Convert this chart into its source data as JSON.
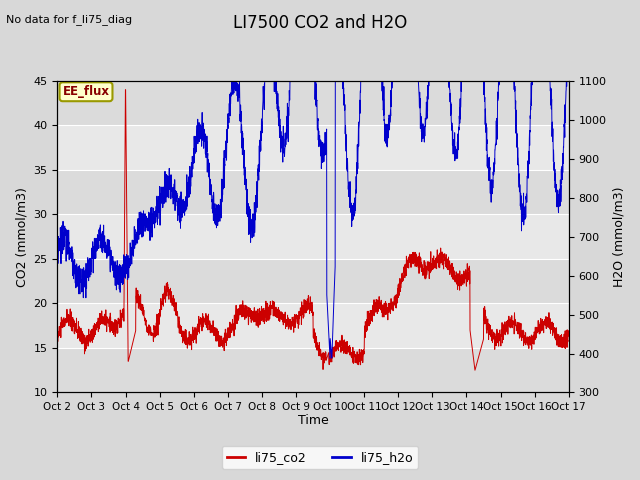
{
  "title": "LI7500 CO2 and H2O",
  "top_left_text": "No data for f_li75_diag",
  "xlabel": "Time",
  "ylabel_left": "CO2 (mmol/m3)",
  "ylabel_right": "H2O (mmol/m3)",
  "ylim_left": [
    10,
    45
  ],
  "ylim_right": [
    300,
    1100
  ],
  "yticks_left": [
    10,
    15,
    20,
    25,
    30,
    35,
    40,
    45
  ],
  "yticks_right": [
    300,
    400,
    500,
    600,
    700,
    800,
    900,
    1000,
    1100
  ],
  "xtick_labels": [
    "Oct 2",
    "Oct 3",
    "Oct 4",
    "Oct 5",
    "Oct 6",
    "Oct 7",
    "Oct 8",
    "Oct 9",
    "Oct 10",
    "Oct 11",
    "Oct 12",
    "Oct 13",
    "Oct 14",
    "Oct 15",
    "Oct 16",
    "Oct 17"
  ],
  "color_co2": "#cc0000",
  "color_h2o": "#0000cc",
  "bg_color": "#d8d8d8",
  "plot_bg_color": "#e8e8e8",
  "grid_color": "#ffffff",
  "legend_label_co2": "li75_co2",
  "legend_label_h2o": "li75_h2o",
  "annotation_box_text": "EE_flux",
  "annotation_box_color": "#ffffcc",
  "annotation_box_edge": "#999900",
  "annotation_box_text_color": "#880000"
}
